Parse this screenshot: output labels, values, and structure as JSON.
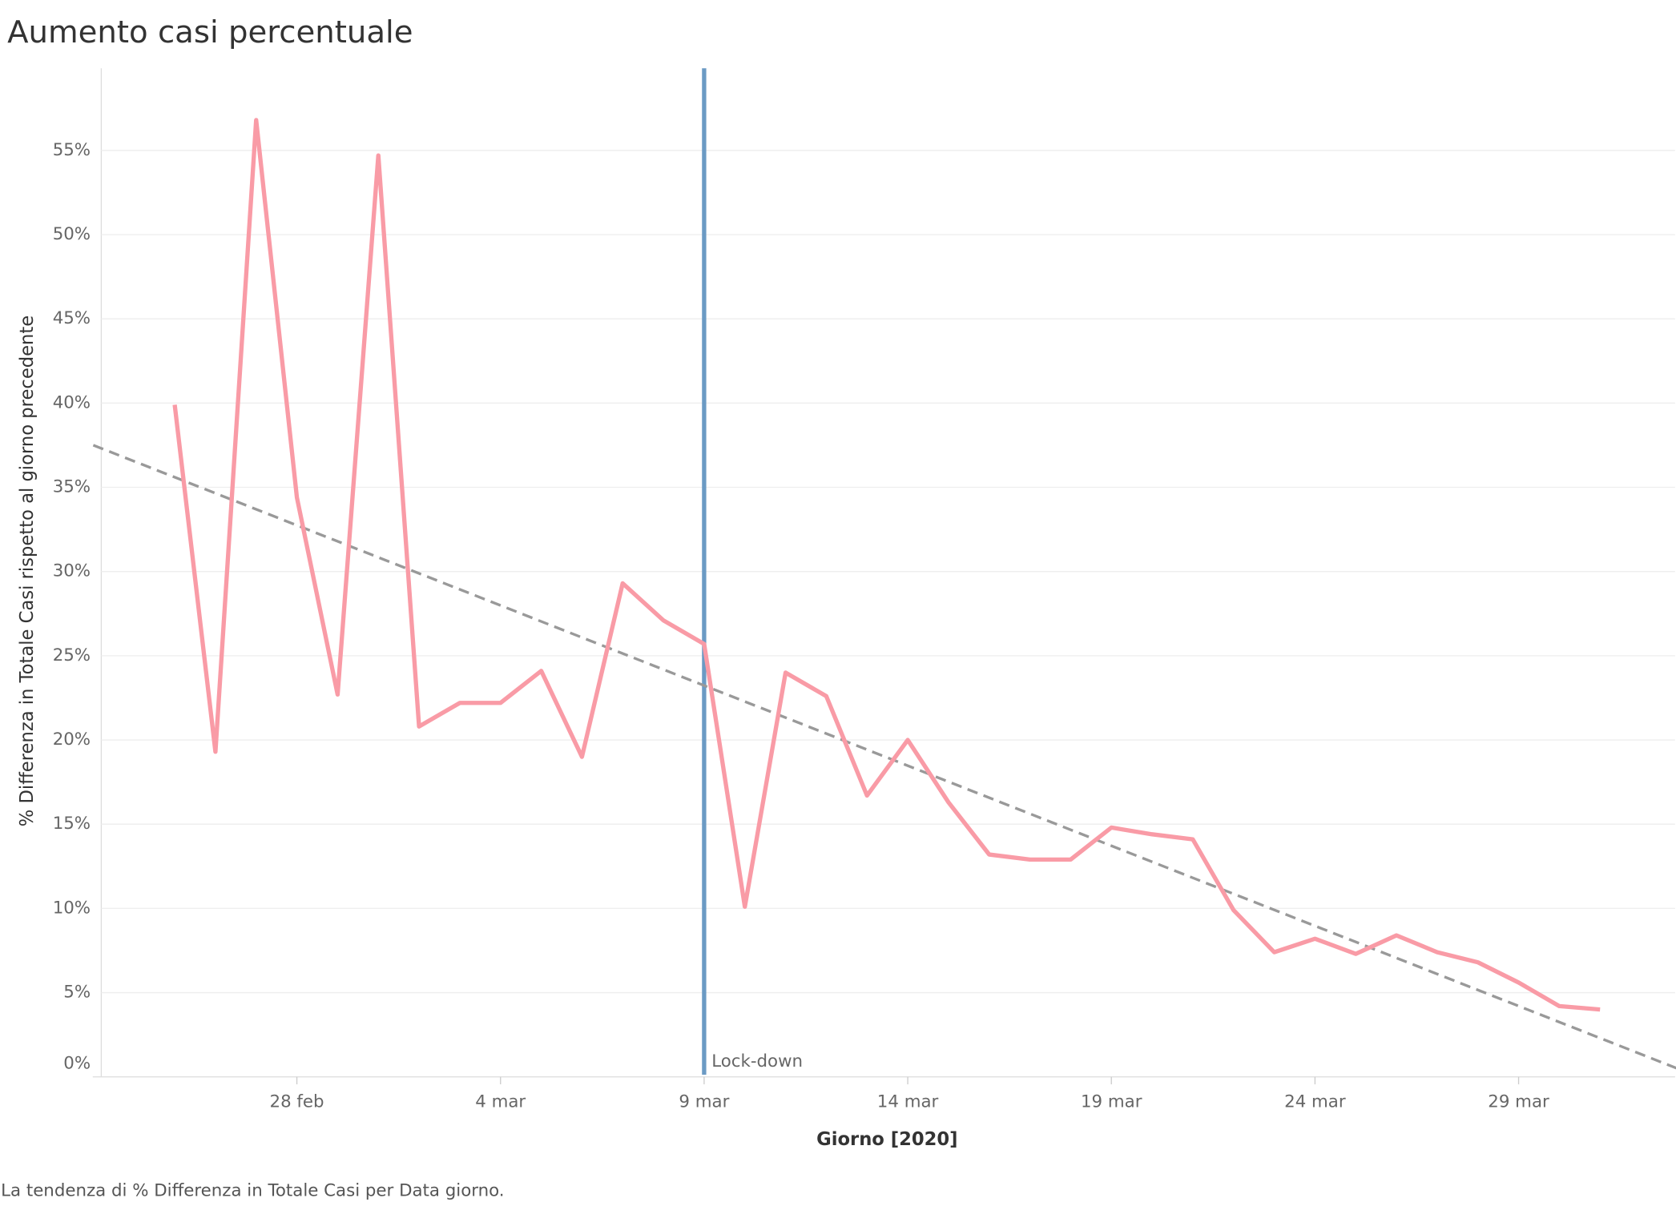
{
  "chart_data": {
    "type": "line",
    "title": "Aumento casi percentuale",
    "y_label": "% Differenza in Totale Casi rispetto al giorno precedente",
    "x_label": "Giorno [2020]",
    "footnote": "La tendenza di % Differenza in Totale Casi per Data giorno.",
    "x": [
      "2020-02-25",
      "2020-02-26",
      "2020-02-27",
      "2020-02-28",
      "2020-02-29",
      "2020-03-01",
      "2020-03-02",
      "2020-03-03",
      "2020-03-04",
      "2020-03-05",
      "2020-03-06",
      "2020-03-07",
      "2020-03-08",
      "2020-03-09",
      "2020-03-10",
      "2020-03-11",
      "2020-03-12",
      "2020-03-13",
      "2020-03-14",
      "2020-03-15",
      "2020-03-16",
      "2020-03-17",
      "2020-03-18",
      "2020-03-19",
      "2020-03-20",
      "2020-03-21",
      "2020-03-22",
      "2020-03-23",
      "2020-03-24",
      "2020-03-25",
      "2020-03-26",
      "2020-03-27",
      "2020-03-28",
      "2020-03-29",
      "2020-03-30",
      "2020-03-31"
    ],
    "series": [
      {
        "color": "#f99ba6",
        "values": [
          39.9,
          19.3,
          56.8,
          34.4,
          22.7,
          54.7,
          20.8,
          22.2,
          22.2,
          24.1,
          19.0,
          29.3,
          27.1,
          25.7,
          10.1,
          24.0,
          22.6,
          16.7,
          20.0,
          16.3,
          13.2,
          12.9,
          12.9,
          14.8,
          14.4,
          14.1,
          9.9,
          7.4,
          8.2,
          7.3,
          8.4,
          7.4,
          6.8,
          5.6,
          4.2,
          4.0
        ]
      }
    ],
    "trend": {
      "color": "#999999",
      "x": [
        "2020-02-23",
        "2020-04-02"
      ],
      "values": [
        37.5,
        0.4
      ]
    },
    "annotation": {
      "x": "2020-03-09",
      "label": "Lock-down",
      "color": "#6b9ac4"
    },
    "xlim": [
      "2020-02-23",
      "2020-04-02"
    ],
    "xticks": [
      {
        "value": "2020-02-28",
        "label": "28 feb"
      },
      {
        "value": "2020-03-04",
        "label": "4 mar"
      },
      {
        "value": "2020-03-09",
        "label": "9 mar"
      },
      {
        "value": "2020-03-14",
        "label": "14 mar"
      },
      {
        "value": "2020-03-19",
        "label": "19 mar"
      },
      {
        "value": "2020-03-24",
        "label": "24 mar"
      },
      {
        "value": "2020-03-29",
        "label": "29 mar"
      }
    ],
    "ylim": [
      0,
      60
    ],
    "yticks": [
      {
        "value": 0,
        "label": "0%"
      },
      {
        "value": 5,
        "label": "5%"
      },
      {
        "value": 10,
        "label": "10%"
      },
      {
        "value": 15,
        "label": "15%"
      },
      {
        "value": 20,
        "label": "20%"
      },
      {
        "value": 25,
        "label": "25%"
      },
      {
        "value": 30,
        "label": "30%"
      },
      {
        "value": 35,
        "label": "35%"
      },
      {
        "value": 40,
        "label": "40%"
      },
      {
        "value": 45,
        "label": "45%"
      },
      {
        "value": 50,
        "label": "50%"
      },
      {
        "value": 55,
        "label": "55%"
      }
    ],
    "grid": true
  }
}
